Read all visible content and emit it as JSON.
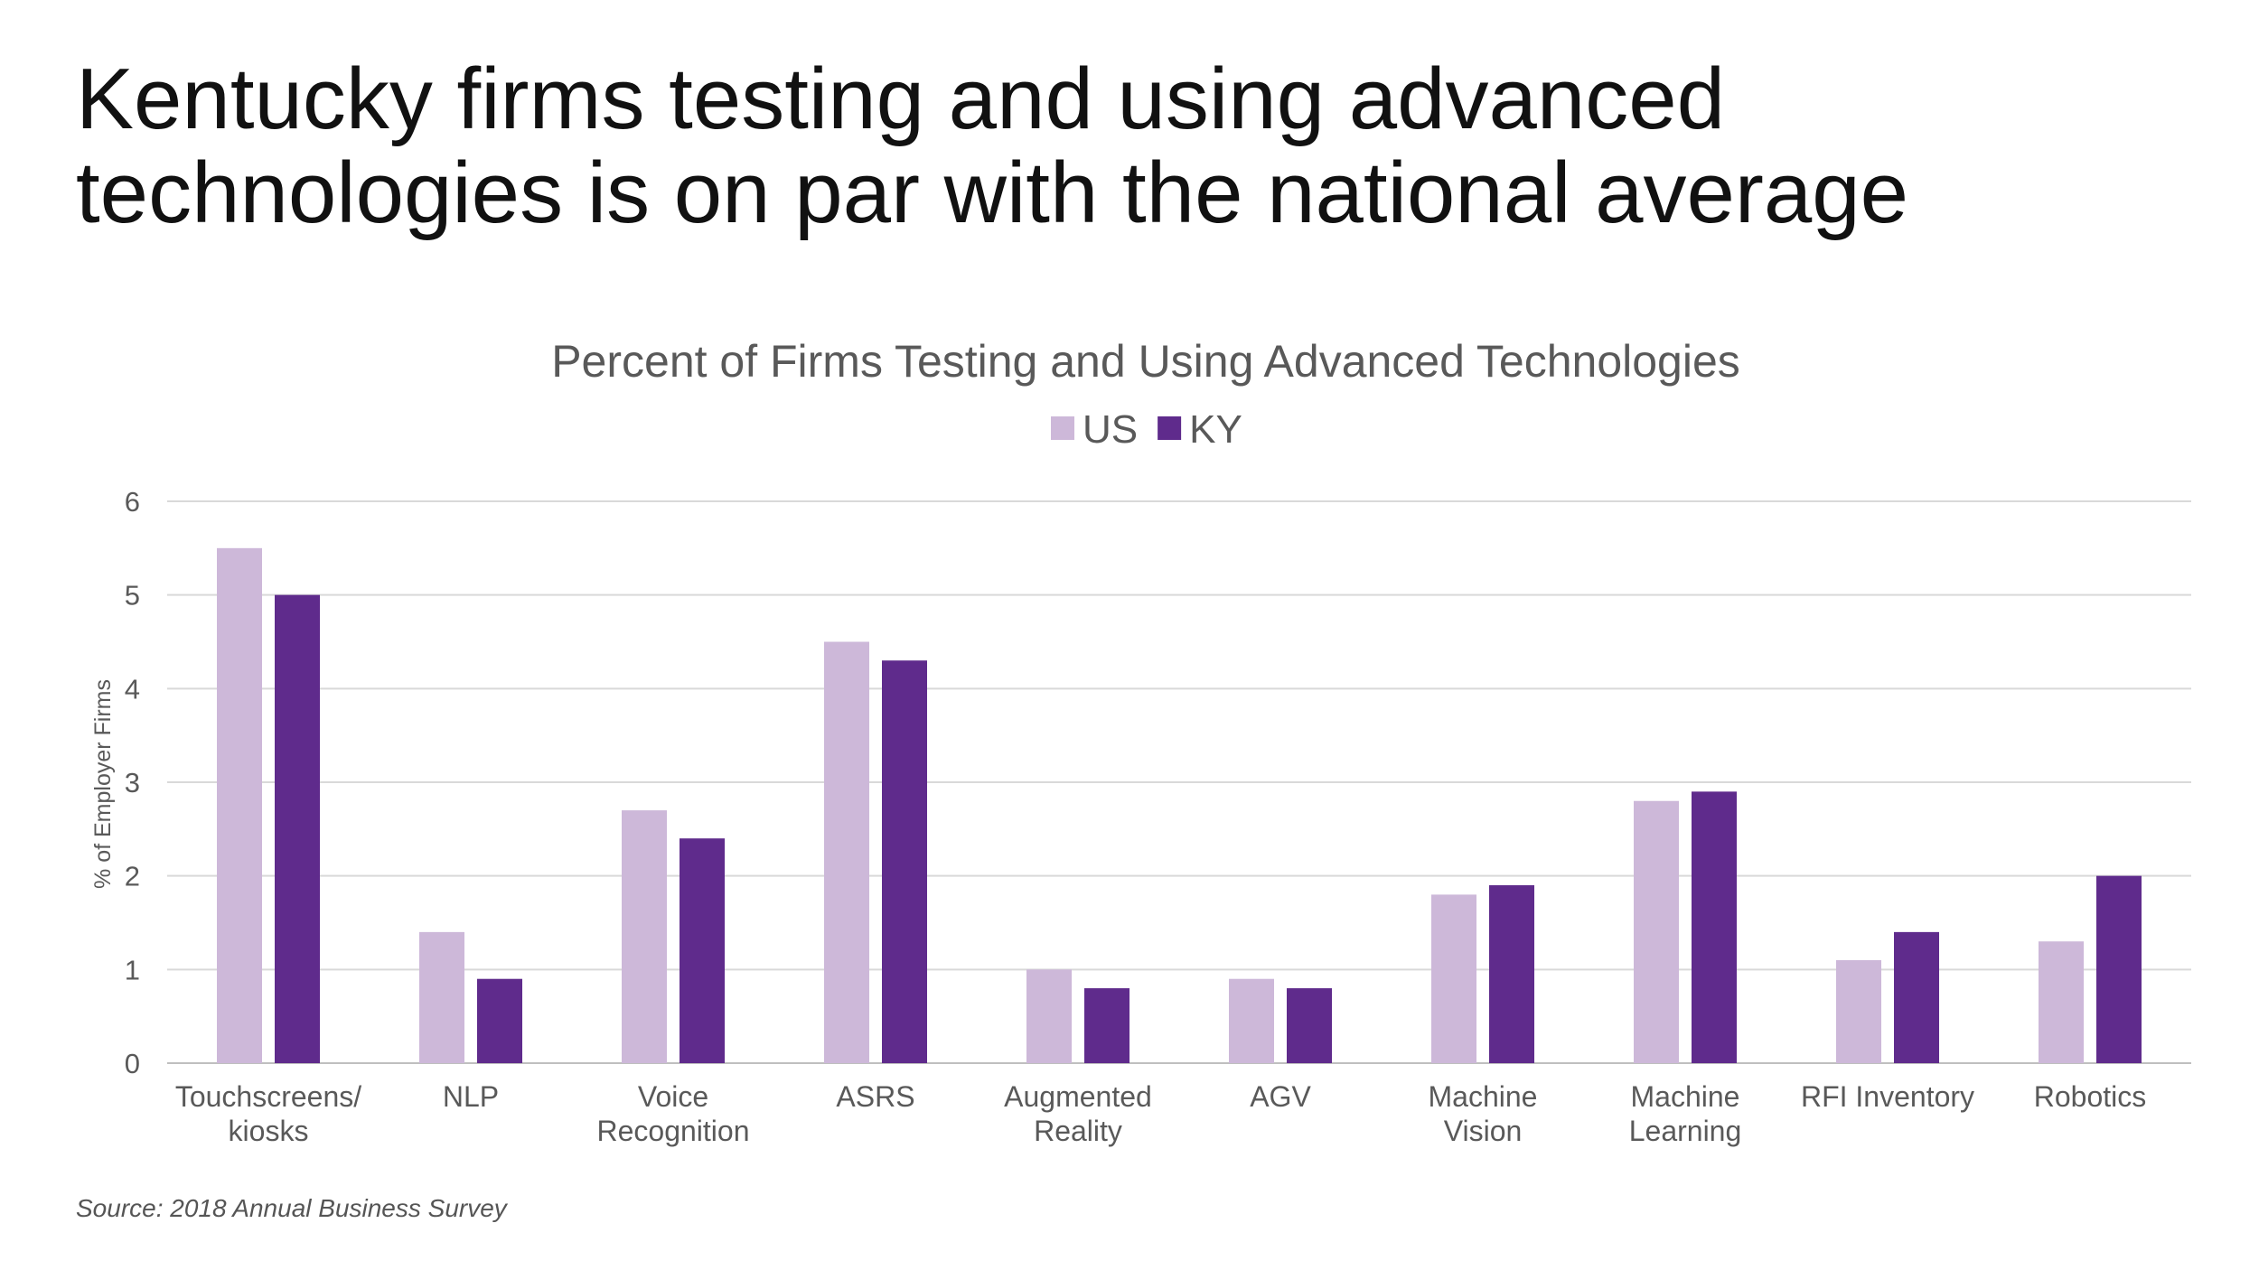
{
  "slide": {
    "title_lines": [
      "Kentucky firms testing and using advanced",
      "technologies is on par with the national average"
    ],
    "source": "Source: 2018 Annual Business Survey"
  },
  "chart_data": {
    "type": "bar",
    "title": "Percent of Firms Testing and Using Advanced Technologies",
    "xlabel": "",
    "ylabel": "% of Employer Firms",
    "ylim": [
      0,
      6
    ],
    "yticks": [
      0,
      1,
      2,
      3,
      4,
      5,
      6
    ],
    "grid": true,
    "legend_position": "top",
    "categories": [
      [
        "Touchscreens/",
        "kiosks"
      ],
      [
        "NLP"
      ],
      [
        "Voice",
        "Recognition"
      ],
      [
        "ASRS"
      ],
      [
        "Augmented",
        "Reality"
      ],
      [
        "AGV"
      ],
      [
        "Machine",
        "Vision"
      ],
      [
        "Machine",
        "Learning"
      ],
      [
        "RFI Inventory"
      ],
      [
        "Robotics"
      ]
    ],
    "series": [
      {
        "name": "US",
        "color": "#cdb8d9",
        "values": [
          5.5,
          1.4,
          2.7,
          4.5,
          1.0,
          0.9,
          1.8,
          2.8,
          1.1,
          1.3
        ]
      },
      {
        "name": "KY",
        "color": "#5f2b8c",
        "values": [
          5.0,
          0.9,
          2.4,
          4.3,
          0.8,
          0.8,
          1.9,
          2.9,
          1.4,
          2.0
        ]
      }
    ]
  }
}
